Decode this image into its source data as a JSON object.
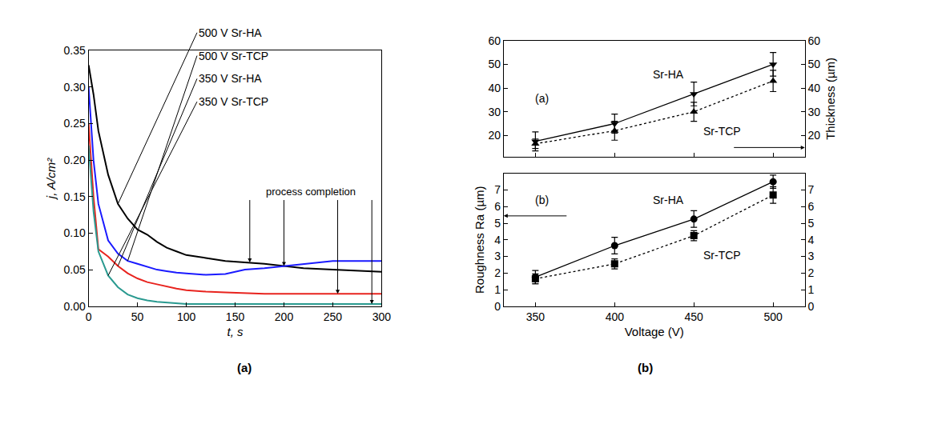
{
  "chart_data": [
    {
      "type": "line",
      "x_label": "t, s",
      "y_label": "j, A/cm²",
      "x": [
        0,
        5,
        10,
        20,
        30,
        40,
        50,
        60,
        70,
        80,
        90,
        100,
        120,
        140,
        160,
        180,
        200,
        220,
        250,
        280,
        300
      ],
      "xlim": [
        0,
        300
      ],
      "xticks": [
        0,
        50,
        100,
        150,
        200,
        250,
        300
      ],
      "ylim": [
        0,
        0.35
      ],
      "yticks": [
        {
          "value": 0,
          "label": "0.00"
        },
        {
          "value": 0.05,
          "label": "0.05"
        },
        {
          "value": 0.1,
          "label": "0.10"
        },
        {
          "value": 0.15,
          "label": "0.15"
        },
        {
          "value": 0.2,
          "label": "0.20"
        },
        {
          "value": 0.25,
          "label": "0.25"
        },
        {
          "value": 0.3,
          "label": "0.30"
        },
        {
          "value": 0.35,
          "label": "0.35"
        }
      ],
      "grid": false,
      "series": [
        {
          "name": "500 V Sr-HA",
          "color": "#000000",
          "values": [
            0.33,
            0.29,
            0.24,
            0.18,
            0.14,
            0.12,
            0.105,
            0.098,
            0.088,
            0.08,
            0.075,
            0.07,
            0.066,
            0.062,
            0.06,
            0.058,
            0.055,
            0.052,
            0.05,
            0.048,
            0.047
          ]
        },
        {
          "name": "500 V Sr-TCP",
          "color": "#1a1aff",
          "values": [
            0.3,
            0.2,
            0.14,
            0.09,
            0.072,
            0.062,
            0.058,
            0.054,
            0.05,
            0.048,
            0.046,
            0.045,
            0.043,
            0.044,
            0.05,
            0.052,
            0.055,
            0.058,
            0.062,
            0.062,
            0.062
          ]
        },
        {
          "name": "350 V Sr-HA",
          "color": "#e8231e",
          "values": [
            0.25,
            0.15,
            0.078,
            0.068,
            0.055,
            0.045,
            0.038,
            0.033,
            0.03,
            0.027,
            0.024,
            0.022,
            0.02,
            0.019,
            0.018,
            0.017,
            0.017,
            0.017,
            0.017,
            0.017,
            0.017
          ]
        },
        {
          "name": "350 V Sr-TCP",
          "color": "#2a9a90",
          "values": [
            0.22,
            0.13,
            0.075,
            0.042,
            0.026,
            0.016,
            0.011,
            0.008,
            0.006,
            0.005,
            0.004,
            0.003,
            0.003,
            0.003,
            0.003,
            0.003,
            0.003,
            0.003,
            0.003,
            0.003,
            0.003
          ]
        }
      ],
      "annotations": [
        {
          "text": "process completion",
          "x": [
            165,
            200,
            255,
            290
          ],
          "y": [
            0.06,
            0.055,
            0.017,
            0.003
          ]
        }
      ]
    },
    {
      "type": "line",
      "y_label": "Thickness (µm)",
      "x": [
        350,
        400,
        450,
        500
      ],
      "xlim": [
        330,
        520
      ],
      "xticks": [
        350,
        400,
        450,
        500
      ],
      "ylim": [
        11,
        60
      ],
      "yticks": [
        20,
        30,
        40,
        50,
        60
      ],
      "grid": false,
      "tick_labels": "y",
      "series": [
        {
          "name": "Sr-HA",
          "color": "#000000",
          "marker": "triangle-down",
          "line_style": "solid",
          "values": [
            17.5,
            25,
            37.5,
            50
          ],
          "errors": [
            4,
            4,
            5,
            5
          ]
        },
        {
          "name": "Sr-TCP",
          "color": "#000000",
          "marker": "triangle-up",
          "line_style": "dotted",
          "values": [
            16.5,
            22,
            30,
            43
          ],
          "errors": [
            2,
            4,
            4,
            4.5
          ]
        }
      ],
      "annotations": [
        {
          "text": "(a)"
        }
      ]
    },
    {
      "type": "line",
      "x_label": "Voltage (V)",
      "y_label": "Roughness Ra (µm)",
      "x": [
        350,
        400,
        450,
        500
      ],
      "xlim": [
        330,
        520
      ],
      "xticks": [
        350,
        400,
        450,
        500
      ],
      "ylim": [
        0,
        8
      ],
      "yticks": [
        0,
        1,
        2,
        3,
        4,
        5,
        6,
        7
      ],
      "grid": false,
      "series": [
        {
          "name": "Sr-HA",
          "color": "#000000",
          "marker": "circle",
          "line_style": "solid",
          "values": [
            1.75,
            3.65,
            5.25,
            7.5
          ],
          "errors": [
            0.4,
            0.5,
            0.5,
            0.4
          ]
        },
        {
          "name": "Sr-TCP",
          "color": "#000000",
          "marker": "square",
          "line_style": "dotted",
          "values": [
            1.65,
            2.55,
            4.25,
            6.7
          ],
          "errors": [
            0.3,
            0.3,
            0.3,
            0.5
          ]
        }
      ],
      "annotations": [
        {
          "text": "(b)"
        }
      ]
    }
  ],
  "captions": [
    "(a)",
    "(b)"
  ]
}
